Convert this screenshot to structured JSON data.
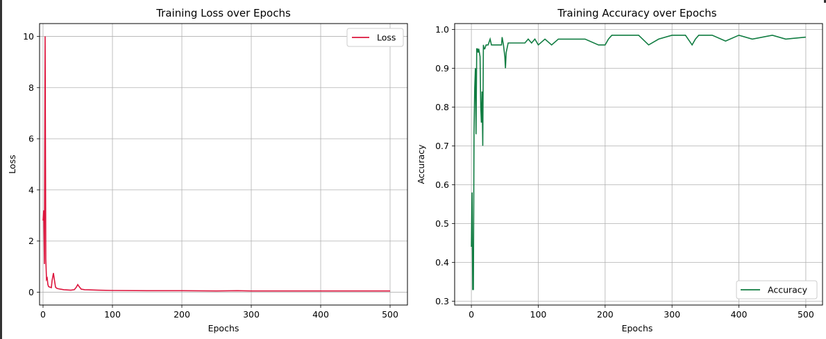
{
  "charts": {
    "loss": {
      "title": "Training Loss over Epochs",
      "xlabel": "Epochs",
      "ylabel": "Loss",
      "legend": "Loss",
      "color": "#dc143c",
      "xticks": [
        "0",
        "100",
        "200",
        "300",
        "400",
        "500"
      ],
      "yticks": [
        "0",
        "2",
        "4",
        "6",
        "8",
        "10"
      ]
    },
    "accuracy": {
      "title": "Training Accuracy over Epochs",
      "xlabel": "Epochs",
      "ylabel": "Accuracy",
      "legend": "Accuracy",
      "color": "#107c41",
      "xticks": [
        "0",
        "100",
        "200",
        "300",
        "400",
        "500"
      ],
      "yticks": [
        "0.3",
        "0.4",
        "0.5",
        "0.6",
        "0.7",
        "0.8",
        "0.9",
        "1.0"
      ]
    }
  },
  "chart_data": [
    {
      "type": "line",
      "title": "Training Loss over Epochs",
      "xlabel": "Epochs",
      "ylabel": "Loss",
      "xlim": [
        -5,
        525
      ],
      "ylim": [
        -0.5,
        10.5
      ],
      "grid": true,
      "legend_position": "top-right",
      "series": [
        {
          "name": "Loss",
          "color": "#dc143c",
          "x": [
            0,
            1,
            2,
            3,
            4,
            5,
            6,
            7,
            8,
            10,
            12,
            13,
            15,
            16,
            18,
            20,
            25,
            30,
            40,
            45,
            48,
            50,
            52,
            55,
            60,
            80,
            100,
            150,
            200,
            250,
            280,
            300,
            350,
            400,
            450,
            500
          ],
          "y": [
            2.8,
            3.2,
            1.1,
            10.0,
            1.3,
            0.5,
            0.55,
            0.3,
            0.22,
            0.2,
            0.18,
            0.45,
            0.75,
            0.55,
            0.2,
            0.15,
            0.12,
            0.1,
            0.08,
            0.1,
            0.2,
            0.3,
            0.22,
            0.12,
            0.1,
            0.08,
            0.07,
            0.06,
            0.06,
            0.05,
            0.06,
            0.05,
            0.05,
            0.05,
            0.05,
            0.05
          ]
        }
      ]
    },
    {
      "type": "line",
      "title": "Training Accuracy over Epochs",
      "xlabel": "Epochs",
      "ylabel": "Accuracy",
      "xlim": [
        -25,
        525
      ],
      "ylim": [
        0.29,
        1.015
      ],
      "grid": true,
      "legend_position": "bottom-right",
      "series": [
        {
          "name": "Accuracy",
          "color": "#107c41",
          "x": [
            0,
            1,
            2,
            3,
            4,
            5,
            6,
            7,
            8,
            9,
            10,
            11,
            12,
            13,
            14,
            15,
            16,
            17,
            18,
            19,
            20,
            22,
            25,
            28,
            30,
            35,
            40,
            45,
            46,
            48,
            50,
            51,
            52,
            55,
            60,
            70,
            80,
            85,
            90,
            95,
            100,
            110,
            120,
            130,
            150,
            170,
            190,
            200,
            205,
            210,
            250,
            265,
            280,
            300,
            320,
            330,
            335,
            340,
            360,
            380,
            400,
            420,
            450,
            470,
            500
          ],
          "y": [
            0.44,
            0.58,
            0.33,
            0.33,
            0.73,
            0.85,
            0.9,
            0.73,
            0.95,
            0.95,
            0.94,
            0.95,
            0.94,
            0.93,
            0.8,
            0.76,
            0.84,
            0.7,
            0.96,
            0.95,
            0.95,
            0.96,
            0.96,
            0.975,
            0.96,
            0.96,
            0.96,
            0.96,
            0.98,
            0.96,
            0.93,
            0.9,
            0.94,
            0.965,
            0.965,
            0.965,
            0.965,
            0.975,
            0.965,
            0.975,
            0.96,
            0.975,
            0.96,
            0.975,
            0.975,
            0.975,
            0.96,
            0.96,
            0.975,
            0.985,
            0.985,
            0.96,
            0.975,
            0.985,
            0.985,
            0.96,
            0.975,
            0.985,
            0.985,
            0.97,
            0.985,
            0.975,
            0.985,
            0.975,
            0.98
          ]
        }
      ]
    }
  ]
}
